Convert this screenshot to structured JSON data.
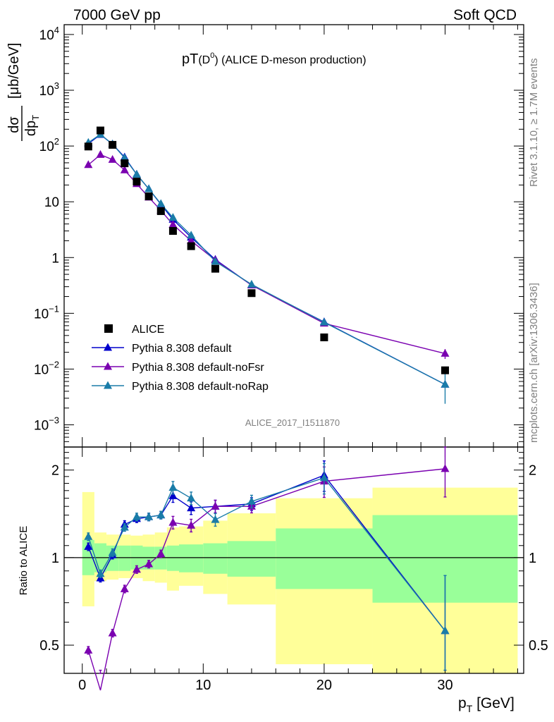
{
  "header": {
    "left": "7000 GeV pp",
    "right": "Soft QCD"
  },
  "side_labels": {
    "rivet": "Rivet 3.1.10, ≥ 1.7M events",
    "mcplots": "mcplots.cern.ch [arXiv:1306.3436]"
  },
  "plot_title": {
    "main": "pT",
    "paren_open": "(D",
    "sup": "0",
    "paren_close": ")",
    "rest": " (ALICE D-meson production)"
  },
  "analysis_label": "ALICE_2017_I1511870",
  "colors": {
    "alice": "#000000",
    "default": "#0000cc",
    "noFsr": "#7a00b0",
    "noRap": "#1a7ca8",
    "band_inner": "#99ff99",
    "band_outer": "#ffff99"
  },
  "axes": {
    "main_y_label": {
      "num": "dσ",
      "den": "dp",
      "den_sub": "T",
      "unit": "[μb/GeV]"
    },
    "ratio_y_label": "Ratio to ALICE",
    "x_label_main": "p",
    "x_label_sub": "T",
    "x_label_unit": " [GeV]",
    "main_y_ticks": [
      {
        "v": 1000,
        "base": "10",
        "exp": "3"
      },
      {
        "v": 100,
        "base": "10",
        "exp": "2"
      },
      {
        "v": 10,
        "base": "10",
        "exp": ""
      },
      {
        "v": 1,
        "base": "1",
        "exp": ""
      },
      {
        "v": 0.1,
        "base": "10",
        "exp": "−1"
      },
      {
        "v": 0.01,
        "base": "10",
        "exp": "−2"
      },
      {
        "v": 0.001,
        "base": "10",
        "exp": "−3"
      },
      {
        "v": 10000,
        "base": "10",
        "exp": "4"
      }
    ],
    "ratio_y_ticks": [
      "0.5",
      "1",
      "2"
    ],
    "x_ticks": [
      "0",
      "10",
      "20",
      "30"
    ]
  },
  "legend": [
    {
      "key": "alice",
      "label": "ALICE"
    },
    {
      "key": "default",
      "label": "Pythia 8.308 default"
    },
    {
      "key": "noFsr",
      "label": "Pythia 8.308 default-noFsr"
    },
    {
      "key": "noRap",
      "label": "Pythia 8.308 default-noRap"
    }
  ],
  "chart_data": {
    "type": "scatter",
    "title": "pT(D0) (ALICE D-meson production)",
    "xlabel": "pT [GeV]",
    "ylabel": "dσ/dpT [μb/GeV]",
    "xlim": [
      -1.5,
      36.5
    ],
    "ylim": [
      0.0004,
      15000
    ],
    "yscale": "log",
    "bins": [
      [
        0,
        1
      ],
      [
        1,
        2
      ],
      [
        2,
        3
      ],
      [
        3,
        4
      ],
      [
        4,
        5
      ],
      [
        5,
        6
      ],
      [
        6,
        7
      ],
      [
        7,
        8
      ],
      [
        8,
        10
      ],
      [
        10,
        12
      ],
      [
        12,
        16
      ],
      [
        16,
        24
      ],
      [
        24,
        36
      ]
    ],
    "x": [
      0.5,
      1.5,
      2.5,
      3.5,
      4.5,
      5.5,
      6.5,
      7.5,
      9,
      11,
      14,
      20,
      30
    ],
    "series": [
      {
        "name": "ALICE",
        "values": [
          98,
          190,
          105,
          49,
          23,
          12.5,
          6.8,
          3.0,
          1.6,
          0.63,
          0.23,
          0.037,
          0.0095
        ]
      },
      {
        "name": "Pythia 8.308 default",
        "values": [
          110,
          160,
          108,
          63,
          31,
          17,
          9.0,
          4.8,
          2.3,
          0.92,
          0.32,
          0.07,
          0.0053
        ]
      },
      {
        "name": "Pythia 8.308 default-noFsr",
        "values": [
          46,
          70,
          57,
          37,
          21,
          12,
          7.0,
          3.9,
          2.0,
          0.9,
          0.32,
          0.066,
          0.019
        ]
      },
      {
        "name": "Pythia 8.308 default-noRap",
        "values": [
          115,
          162,
          108,
          61,
          31,
          17,
          9.2,
          5.2,
          2.5,
          0.85,
          0.33,
          0.069,
          0.0053
        ]
      }
    ],
    "mc_errors": [
      {
        "name": "Pythia 8.308 default-noFsr",
        "rel": [
          0.02,
          0.02,
          0.02,
          0.02,
          0.02,
          0.03,
          0.03,
          0.04,
          0.05,
          0.06,
          0.07,
          0.09,
          0.2
        ]
      },
      {
        "name": "Pythia 8.308 default-noRap",
        "rel": [
          0.02,
          0.02,
          0.02,
          0.02,
          0.02,
          0.03,
          0.03,
          0.04,
          0.05,
          0.06,
          0.07,
          0.12,
          0.55
        ]
      }
    ],
    "ratio": {
      "ylabel": "Ratio to ALICE",
      "ylim": [
        0.4,
        2.4
      ],
      "yscale": "log",
      "series": [
        {
          "name": "Pythia 8.308 default",
          "values": [
            1.09,
            0.85,
            1.02,
            1.3,
            1.36,
            1.38,
            1.4,
            1.63,
            1.48,
            1.5,
            1.53,
            1.92,
            0.56
          ]
        },
        {
          "name": "Pythia 8.308 default-noFsr",
          "values": [
            0.48,
            0.35,
            0.55,
            0.78,
            0.91,
            0.95,
            1.03,
            1.32,
            1.29,
            1.5,
            1.5,
            1.83,
            2.02
          ]
        },
        {
          "name": "Pythia 8.308 default-noRap",
          "values": [
            1.18,
            0.88,
            1.04,
            1.27,
            1.38,
            1.38,
            1.4,
            1.74,
            1.6,
            1.35,
            1.56,
            1.88,
            0.56
          ]
        }
      ],
      "band_inner": [
        [
          0.87,
          1.15
        ],
        [
          0.89,
          1.12
        ],
        [
          0.9,
          1.1
        ],
        [
          0.9,
          1.1
        ],
        [
          0.91,
          1.1
        ],
        [
          0.91,
          1.09
        ],
        [
          0.91,
          1.09
        ],
        [
          0.9,
          1.1
        ],
        [
          0.89,
          1.11
        ],
        [
          0.88,
          1.12
        ],
        [
          0.86,
          1.14
        ],
        [
          0.78,
          1.26
        ],
        [
          0.7,
          1.4
        ]
      ],
      "band_outer": [
        [
          0.68,
          1.68
        ],
        [
          0.83,
          1.22
        ],
        [
          0.84,
          1.2
        ],
        [
          0.85,
          1.2
        ],
        [
          0.85,
          1.19
        ],
        [
          0.83,
          1.2
        ],
        [
          0.82,
          1.22
        ],
        [
          0.77,
          1.27
        ],
        [
          0.8,
          1.28
        ],
        [
          0.75,
          1.34
        ],
        [
          0.69,
          1.42
        ],
        [
          0.43,
          1.6
        ],
        [
          0.36,
          1.74
        ]
      ]
    }
  }
}
